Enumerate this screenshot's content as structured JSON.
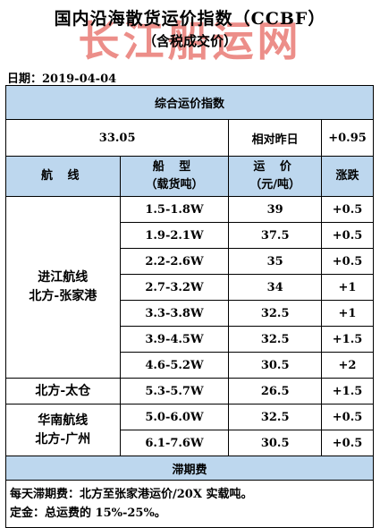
{
  "header": {
    "title": "国内沿海散货运价指数（CCBF）",
    "subtitle": "（含税成交价）",
    "watermark": "长江船运网"
  },
  "date_line": "日期：2019-04-04",
  "composite": {
    "title": "综合运价指数",
    "value": "33.05",
    "change_label": "相对昨日",
    "change_value": "+0.95"
  },
  "table": {
    "headers": {
      "route": "航 线",
      "ship_type": "船 型",
      "ship_type_sub": "（载货吨）",
      "rate": "运 价",
      "rate_sub": "（元/吨）",
      "change": "涨跌"
    },
    "groups": [
      {
        "route_lines": [
          "进江航线",
          "北方-张家港"
        ],
        "rows": [
          {
            "ship_type": "1.5-1.8W",
            "rate": "39",
            "change": "+0.5"
          },
          {
            "ship_type": "1.9-2.1W",
            "rate": "37.5",
            "change": "+0.5"
          },
          {
            "ship_type": "2.2-2.6W",
            "rate": "35",
            "change": "+0.5"
          },
          {
            "ship_type": "2.7-3.2W",
            "rate": "34",
            "change": "+1"
          },
          {
            "ship_type": "3.3-3.8W",
            "rate": "32.5",
            "change": "+1"
          },
          {
            "ship_type": "3.9-4.5W",
            "rate": "32.5",
            "change": "+1.5"
          },
          {
            "ship_type": "4.6-5.2W",
            "rate": "30.5",
            "change": "+2"
          }
        ]
      },
      {
        "route_lines": [
          "北方-太仓"
        ],
        "rows": [
          {
            "ship_type": "5.3-5.7W",
            "rate": "26.5",
            "change": "+1.5"
          }
        ]
      },
      {
        "route_lines": [
          "华南航线",
          "北方-广州"
        ],
        "rows": [
          {
            "ship_type": "5.0-6.0W",
            "rate": "32.5",
            "change": "+0.5"
          },
          {
            "ship_type": "6.1-7.6W",
            "rate": "30.5",
            "change": "+0.5"
          }
        ]
      }
    ]
  },
  "demurrage": {
    "title": "滞期费",
    "lines": [
      "每天滞期费：北方至张家港运价/20X 实载吨。",
      "定金：总运费的 15%-25%。"
    ]
  }
}
